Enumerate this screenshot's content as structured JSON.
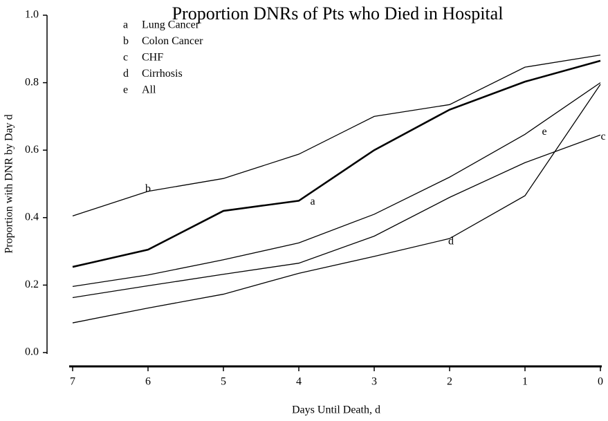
{
  "chart_data": {
    "type": "line",
    "title": "Proportion DNRs of Pts who Died in Hospital",
    "xlabel": "Days Until Death, d",
    "ylabel": "Proportion with DNR by Day d",
    "x": [
      7,
      6,
      5,
      4,
      3,
      2,
      1,
      0
    ],
    "xlim": [
      7,
      0
    ],
    "xticks": [
      7,
      6,
      5,
      4,
      3,
      2,
      1,
      0
    ],
    "ylim": [
      0,
      1
    ],
    "yticks": [
      {
        "value": 0,
        "label": "0.0"
      },
      0.2,
      0.4,
      0.6,
      0.8,
      {
        "value": 1,
        "label": "1.0"
      }
    ],
    "grid": false,
    "series": [
      {
        "label": "a",
        "name": "Lung Cancer",
        "color": "#000000",
        "line_width": 2.6,
        "values": [
          0.254,
          0.305,
          0.42,
          0.45,
          0.6,
          0.72,
          0.803,
          0.865
        ]
      },
      {
        "label": "b",
        "name": "Colon Cancer",
        "color": "#000000",
        "line_width": 1.3,
        "values": [
          0.405,
          0.478,
          0.516,
          0.588,
          0.7,
          0.735,
          0.846,
          0.882
        ]
      },
      {
        "label": "c",
        "name": "CHF",
        "color": "#000000",
        "line_width": 1.3,
        "values": [
          0.163,
          0.198,
          0.232,
          0.265,
          0.345,
          0.46,
          0.563,
          0.645
        ]
      },
      {
        "label": "d",
        "name": "Cirrhosis",
        "color": "#000000",
        "line_width": 1.3,
        "values": [
          0.088,
          0.132,
          0.173,
          0.235,
          0.285,
          0.338,
          0.465,
          0.795
        ]
      },
      {
        "label": "e",
        "name": "All",
        "color": "#000000",
        "line_width": 1.3,
        "values": [
          0.196,
          0.23,
          0.275,
          0.325,
          0.41,
          0.52,
          0.647,
          0.8
        ]
      }
    ]
  }
}
